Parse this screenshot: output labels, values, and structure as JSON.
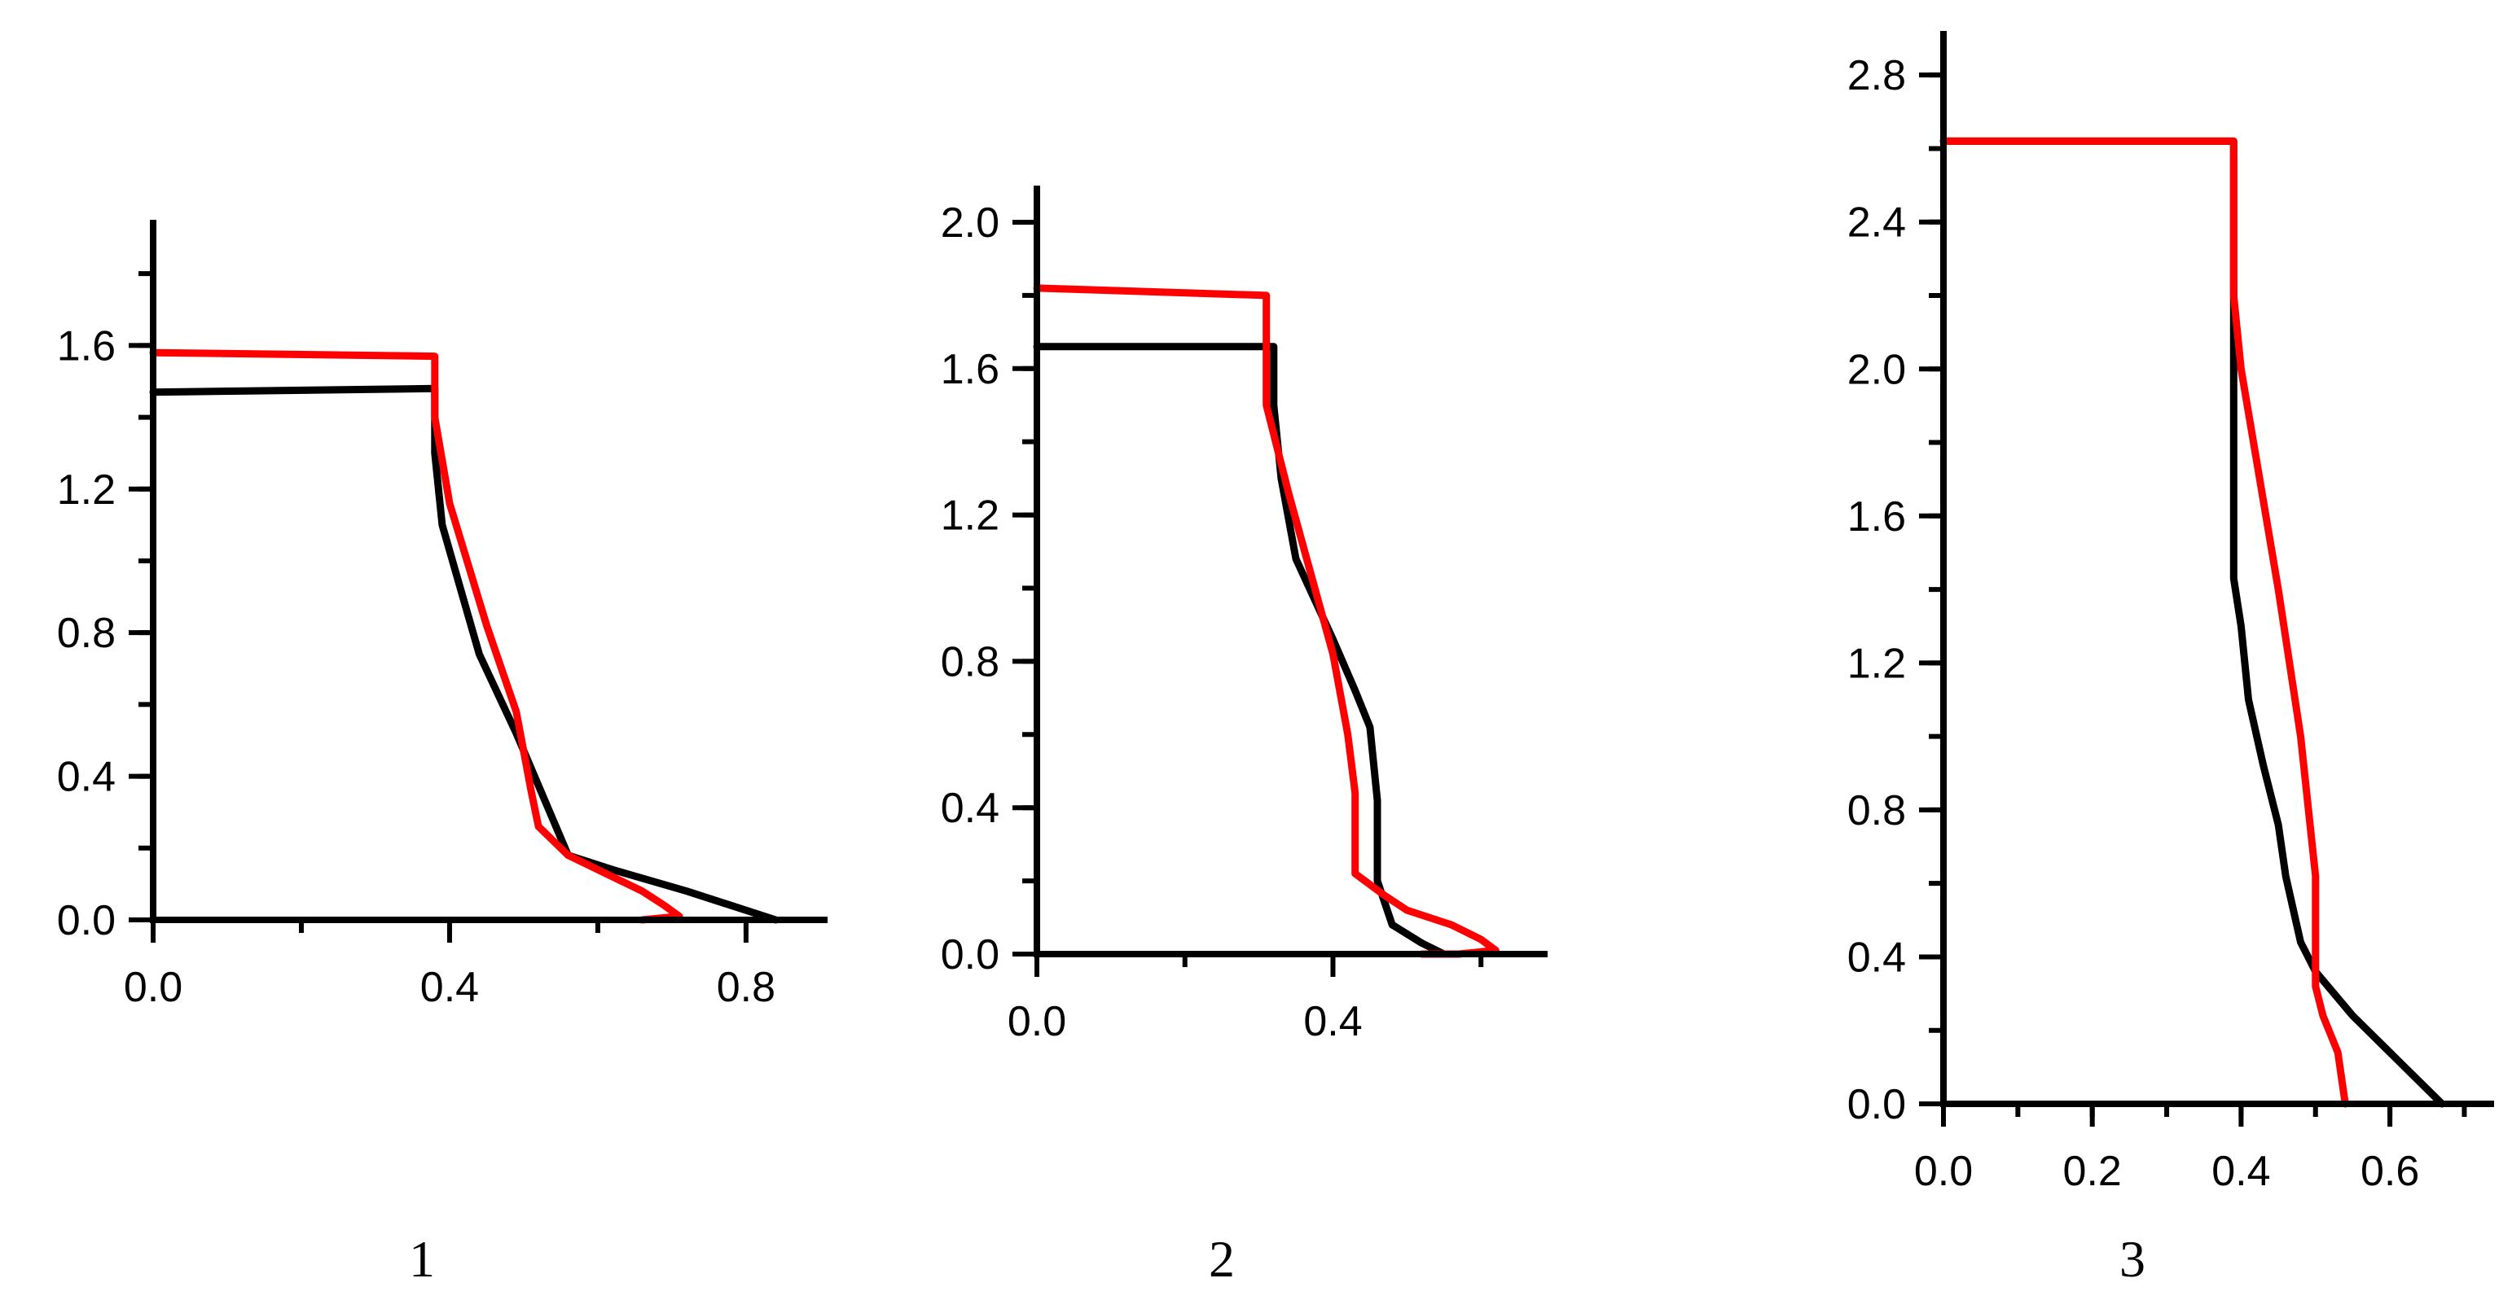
{
  "colors": {
    "axis": "#000000",
    "series_black": "#000000",
    "series_red": "#ff0000"
  },
  "chart_data": [
    {
      "type": "line",
      "caption": "1",
      "xlim": [
        0,
        0.91
      ],
      "ylim": [
        0,
        1.95
      ],
      "xticks": [
        0.0,
        0.4,
        0.8
      ],
      "xtick_labels": [
        "0.0",
        "0.4",
        "0.8"
      ],
      "yticks": [
        0.0,
        0.4,
        0.8,
        1.2,
        1.6
      ],
      "ytick_labels": [
        "0.0",
        "0.4",
        "0.8",
        "1.2",
        "1.6"
      ],
      "x_minor_step": 0.2,
      "y_minor_step": 0.2,
      "series": [
        {
          "color": "#000000",
          "points": [
            [
              0.0,
              1.47
            ],
            [
              0.38,
              1.48
            ],
            [
              0.38,
              1.3
            ],
            [
              0.39,
              1.1
            ],
            [
              0.44,
              0.74
            ],
            [
              0.49,
              0.52
            ],
            [
              0.56,
              0.18
            ],
            [
              0.62,
              0.14
            ],
            [
              0.72,
              0.08
            ],
            [
              0.84,
              0.0
            ]
          ]
        },
        {
          "color": "#ff0000",
          "points": [
            [
              0.0,
              1.58
            ],
            [
              0.38,
              1.57
            ],
            [
              0.38,
              1.4
            ],
            [
              0.4,
              1.16
            ],
            [
              0.45,
              0.82
            ],
            [
              0.49,
              0.58
            ],
            [
              0.51,
              0.36
            ],
            [
              0.52,
              0.26
            ],
            [
              0.56,
              0.18
            ],
            [
              0.61,
              0.13
            ],
            [
              0.66,
              0.08
            ],
            [
              0.69,
              0.04
            ],
            [
              0.71,
              0.01
            ],
            [
              0.66,
              0.0
            ]
          ]
        }
      ]
    },
    {
      "type": "line",
      "caption": "2",
      "xlim": [
        0,
        0.69
      ],
      "ylim": [
        0,
        2.1
      ],
      "xticks": [
        0.0,
        0.4
      ],
      "xtick_labels": [
        "0.0",
        "0.4"
      ],
      "yticks": [
        0.0,
        0.4,
        0.8,
        1.2,
        1.6,
        2.0
      ],
      "ytick_labels": [
        "0.0",
        "0.4",
        "0.8",
        "1.2",
        "1.6",
        "2.0"
      ],
      "x_minor_step": 0.2,
      "y_minor_step": 0.2,
      "series": [
        {
          "color": "#000000",
          "points": [
            [
              0.0,
              1.66
            ],
            [
              0.32,
              1.66
            ],
            [
              0.32,
              1.5
            ],
            [
              0.33,
              1.3
            ],
            [
              0.35,
              1.08
            ],
            [
              0.4,
              0.86
            ],
            [
              0.43,
              0.72
            ],
            [
              0.45,
              0.62
            ],
            [
              0.46,
              0.42
            ],
            [
              0.46,
              0.2
            ],
            [
              0.48,
              0.08
            ],
            [
              0.52,
              0.03
            ],
            [
              0.55,
              0.0
            ]
          ]
        },
        {
          "color": "#ff0000",
          "points": [
            [
              0.0,
              1.82
            ],
            [
              0.31,
              1.8
            ],
            [
              0.31,
              1.5
            ],
            [
              0.34,
              1.26
            ],
            [
              0.37,
              1.04
            ],
            [
              0.4,
              0.82
            ],
            [
              0.42,
              0.6
            ],
            [
              0.43,
              0.44
            ],
            [
              0.43,
              0.3
            ],
            [
              0.43,
              0.22
            ],
            [
              0.47,
              0.16
            ],
            [
              0.5,
              0.12
            ],
            [
              0.56,
              0.08
            ],
            [
              0.6,
              0.04
            ],
            [
              0.62,
              0.01
            ],
            [
              0.57,
              0.0
            ],
            [
              0.52,
              0.0
            ]
          ]
        }
      ]
    },
    {
      "type": "line",
      "caption": "3",
      "xlim": [
        0,
        0.74
      ],
      "ylim": [
        0,
        2.92
      ],
      "xticks": [
        0.0,
        0.2,
        0.4,
        0.6
      ],
      "xtick_labels": [
        "0.0",
        "0.2",
        "0.4",
        "0.6"
      ],
      "yticks": [
        0.0,
        0.4,
        0.8,
        1.2,
        1.6,
        2.0,
        2.4,
        2.8
      ],
      "ytick_labels": [
        "0.0",
        "0.4",
        "0.8",
        "1.2",
        "1.6",
        "2.0",
        "2.4",
        "2.8"
      ],
      "x_minor_step": 0.1,
      "y_minor_step": 0.2,
      "series": [
        {
          "color": "#000000",
          "points": [
            [
              0.0,
              2.62
            ],
            [
              0.39,
              2.62
            ],
            [
              0.39,
              1.43
            ],
            [
              0.4,
              1.3
            ],
            [
              0.41,
              1.1
            ],
            [
              0.43,
              0.92
            ],
            [
              0.45,
              0.76
            ],
            [
              0.46,
              0.62
            ],
            [
              0.48,
              0.44
            ],
            [
              0.5,
              0.36
            ],
            [
              0.55,
              0.24
            ],
            [
              0.61,
              0.12
            ],
            [
              0.67,
              0.0
            ]
          ]
        },
        {
          "color": "#ff0000",
          "points": [
            [
              0.0,
              2.62
            ],
            [
              0.39,
              2.62
            ],
            [
              0.39,
              2.2
            ],
            [
              0.4,
              2.0
            ],
            [
              0.42,
              1.76
            ],
            [
              0.45,
              1.4
            ],
            [
              0.48,
              1.0
            ],
            [
              0.5,
              0.62
            ],
            [
              0.5,
              0.4
            ],
            [
              0.5,
              0.32
            ],
            [
              0.51,
              0.24
            ],
            [
              0.53,
              0.14
            ],
            [
              0.54,
              0.0
            ]
          ]
        }
      ]
    }
  ]
}
